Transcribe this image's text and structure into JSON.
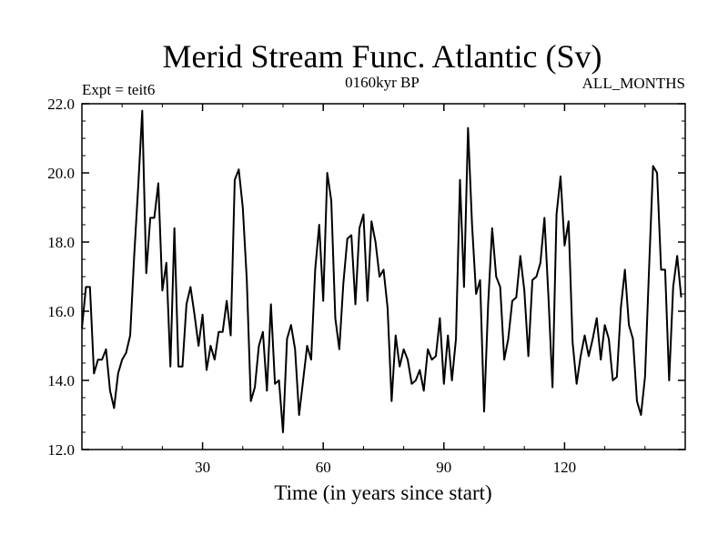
{
  "chart_data": {
    "type": "line",
    "title": "Merid Stream Func. Atlantic (Sv)",
    "subtitle_left": "Expt = teit6",
    "subtitle_center": "0160kyr BP",
    "subtitle_right": "ALL_MONTHS",
    "xlabel": "Time (in years since start)",
    "ylabel": "",
    "xlim": [
      0,
      150
    ],
    "ylim": [
      12.0,
      22.0
    ],
    "x_ticks": [
      30,
      60,
      90,
      120
    ],
    "x_tick_labels": [
      "30",
      "60",
      "90",
      "120"
    ],
    "y_ticks": [
      12.0,
      14.0,
      16.0,
      18.0,
      20.0,
      22.0
    ],
    "y_tick_labels": [
      "12.0",
      "14.0",
      "16.0",
      "18.0",
      "20.0",
      "22.0"
    ],
    "grid": false,
    "legend": "none",
    "line_color": "#000000",
    "series": [
      {
        "x_start": 0,
        "x_step": 1,
        "values": [
          15.5,
          16.7,
          16.7,
          14.2,
          14.6,
          14.6,
          14.9,
          13.7,
          13.2,
          14.2,
          14.6,
          14.8,
          15.3,
          17.6,
          19.6,
          21.8,
          17.1,
          18.7,
          18.7,
          19.7,
          16.6,
          17.4,
          14.4,
          18.4,
          14.4,
          14.4,
          16.2,
          16.7,
          15.9,
          15.0,
          15.9,
          14.3,
          15.0,
          14.6,
          15.4,
          15.4,
          16.3,
          15.3,
          19.8,
          20.1,
          19.0,
          16.9,
          13.4,
          13.8,
          15.0,
          15.4,
          13.7,
          16.2,
          13.9,
          14.0,
          12.5,
          15.2,
          15.6,
          14.9,
          13.0,
          14.0,
          15.0,
          14.6,
          17.2,
          18.5,
          16.3,
          20.0,
          19.2,
          15.8,
          14.9,
          16.8,
          18.1,
          18.2,
          16.2,
          18.4,
          18.8,
          16.3,
          18.6,
          18.0,
          17.0,
          17.2,
          16.1,
          13.4,
          15.3,
          14.4,
          14.9,
          14.6,
          13.9,
          14.0,
          14.3,
          13.7,
          14.9,
          14.6,
          14.7,
          15.8,
          13.9,
          15.3,
          14.0,
          15.2,
          19.8,
          16.7,
          21.3,
          18.5,
          16.5,
          16.9,
          13.1,
          16.2,
          18.4,
          17.0,
          16.7,
          14.6,
          15.2,
          16.3,
          16.4,
          17.6,
          16.6,
          14.7,
          16.9,
          17.0,
          17.4,
          18.7,
          16.4,
          13.8,
          18.8,
          19.9,
          17.9,
          18.6,
          15.1,
          13.9,
          14.7,
          15.3,
          14.7,
          15.2,
          15.8,
          14.6,
          15.6,
          15.2,
          14.0,
          14.1,
          16.1,
          17.2,
          15.6,
          15.2,
          13.4,
          13.0,
          14.1,
          17.2,
          20.2,
          20.0,
          17.2,
          17.2,
          14.0,
          16.7,
          17.6,
          16.4
        ]
      }
    ]
  }
}
